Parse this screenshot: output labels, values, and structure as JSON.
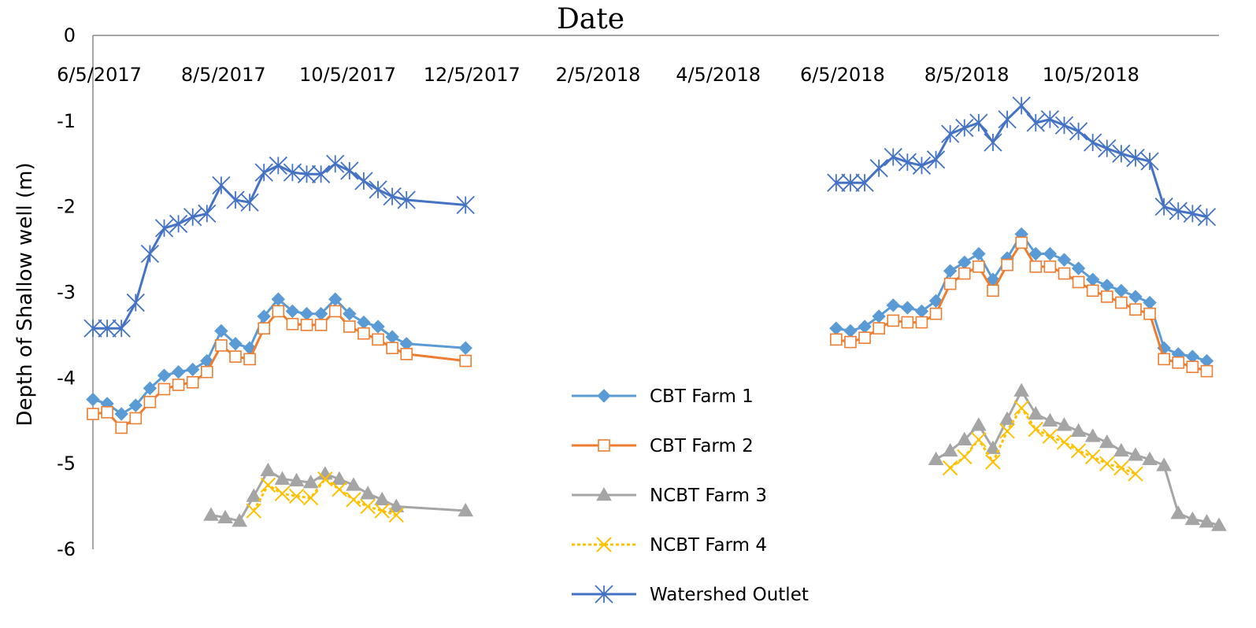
{
  "chart_data": {
    "type": "line",
    "title": "Date",
    "ylabel": "Depth of Shallow well (m)",
    "ylim": [
      -6,
      0
    ],
    "yticks": [
      0,
      -1,
      -2,
      -3,
      -4,
      -5,
      -6
    ],
    "y_tick_labels": [
      "0",
      "-1",
      "-2",
      "-3",
      "-4",
      "-5",
      "-6"
    ],
    "x_axis": {
      "position": "top"
    },
    "x_tick_labels": [
      "6/5/2017",
      "8/5/2017",
      "10/5/2017",
      "12/5/2017",
      "2/5/2018",
      "4/5/2018",
      "6/5/2018",
      "8/5/2018",
      "10/5/2018"
    ],
    "xticks": [
      "2017-06-05",
      "2017-08-05",
      "2017-10-05",
      "2017-12-05",
      "2018-02-05",
      "2018-04-05",
      "2018-06-05",
      "2018-08-05",
      "2018-10-05"
    ],
    "xlim": [
      "2017-06-05",
      "2018-12-10"
    ],
    "legend": {
      "placement": "bottom-center"
    },
    "series": [
      {
        "name": "CBT Farm 1",
        "color": "#5B9BD5",
        "marker": "diamond",
        "segments": [
          [
            [
              "2017-06-05",
              -4.25
            ],
            [
              "2017-06-12",
              -4.3
            ],
            [
              "2017-06-19",
              -4.42
            ],
            [
              "2017-06-26",
              -4.32
            ],
            [
              "2017-07-03",
              -4.12
            ],
            [
              "2017-07-10",
              -3.97
            ],
            [
              "2017-07-17",
              -3.93
            ],
            [
              "2017-07-24",
              -3.9
            ],
            [
              "2017-07-31",
              -3.8
            ],
            [
              "2017-08-07",
              -3.45
            ],
            [
              "2017-08-14",
              -3.6
            ],
            [
              "2017-08-21",
              -3.65
            ],
            [
              "2017-08-28",
              -3.28
            ],
            [
              "2017-09-04",
              -3.08
            ],
            [
              "2017-09-11",
              -3.22
            ],
            [
              "2017-09-18",
              -3.25
            ],
            [
              "2017-09-25",
              -3.25
            ],
            [
              "2017-10-02",
              -3.08
            ],
            [
              "2017-10-09",
              -3.25
            ],
            [
              "2017-10-16",
              -3.35
            ],
            [
              "2017-10-23",
              -3.4
            ],
            [
              "2017-10-30",
              -3.52
            ],
            [
              "2017-11-06",
              -3.6
            ],
            [
              "2017-12-05",
              -3.65
            ]
          ],
          [
            [
              "2018-06-05",
              -3.42
            ],
            [
              "2018-06-12",
              -3.45
            ],
            [
              "2018-06-19",
              -3.4
            ],
            [
              "2018-06-26",
              -3.28
            ],
            [
              "2018-07-03",
              -3.15
            ],
            [
              "2018-07-10",
              -3.18
            ],
            [
              "2018-07-17",
              -3.22
            ],
            [
              "2018-07-24",
              -3.1
            ],
            [
              "2018-07-31",
              -2.75
            ],
            [
              "2018-08-07",
              -2.65
            ],
            [
              "2018-08-14",
              -2.55
            ],
            [
              "2018-08-21",
              -2.85
            ],
            [
              "2018-08-28",
              -2.6
            ],
            [
              "2018-09-04",
              -2.32
            ],
            [
              "2018-09-11",
              -2.55
            ],
            [
              "2018-09-18",
              -2.55
            ],
            [
              "2018-09-25",
              -2.62
            ],
            [
              "2018-10-02",
              -2.72
            ],
            [
              "2018-10-09",
              -2.85
            ],
            [
              "2018-10-16",
              -2.92
            ],
            [
              "2018-10-23",
              -2.98
            ],
            [
              "2018-10-30",
              -3.05
            ],
            [
              "2018-11-06",
              -3.12
            ],
            [
              "2018-11-13",
              -3.65
            ],
            [
              "2018-11-20",
              -3.72
            ],
            [
              "2018-11-27",
              -3.75
            ],
            [
              "2018-12-04",
              -3.8
            ]
          ]
        ]
      },
      {
        "name": "CBT Farm 2",
        "color": "#ED7D31",
        "marker": "square",
        "segments": [
          [
            [
              "2017-06-05",
              -4.42
            ],
            [
              "2017-06-12",
              -4.4
            ],
            [
              "2017-06-19",
              -4.58
            ],
            [
              "2017-06-26",
              -4.47
            ],
            [
              "2017-07-03",
              -4.28
            ],
            [
              "2017-07-10",
              -4.13
            ],
            [
              "2017-07-17",
              -4.08
            ],
            [
              "2017-07-24",
              -4.05
            ],
            [
              "2017-07-31",
              -3.93
            ],
            [
              "2017-08-07",
              -3.62
            ],
            [
              "2017-08-14",
              -3.75
            ],
            [
              "2017-08-21",
              -3.78
            ],
            [
              "2017-08-28",
              -3.42
            ],
            [
              "2017-09-04",
              -3.22
            ],
            [
              "2017-09-11",
              -3.37
            ],
            [
              "2017-09-18",
              -3.38
            ],
            [
              "2017-09-25",
              -3.38
            ],
            [
              "2017-10-02",
              -3.22
            ],
            [
              "2017-10-09",
              -3.4
            ],
            [
              "2017-10-16",
              -3.48
            ],
            [
              "2017-10-23",
              -3.55
            ],
            [
              "2017-10-30",
              -3.65
            ],
            [
              "2017-11-06",
              -3.72
            ],
            [
              "2017-12-05",
              -3.8
            ]
          ],
          [
            [
              "2018-06-05",
              -3.55
            ],
            [
              "2018-06-12",
              -3.58
            ],
            [
              "2018-06-19",
              -3.53
            ],
            [
              "2018-06-26",
              -3.42
            ],
            [
              "2018-07-03",
              -3.33
            ],
            [
              "2018-07-10",
              -3.35
            ],
            [
              "2018-07-17",
              -3.35
            ],
            [
              "2018-07-24",
              -3.25
            ],
            [
              "2018-07-31",
              -2.9
            ],
            [
              "2018-08-07",
              -2.78
            ],
            [
              "2018-08-14",
              -2.7
            ],
            [
              "2018-08-21",
              -2.98
            ],
            [
              "2018-08-28",
              -2.68
            ],
            [
              "2018-09-04",
              -2.42
            ],
            [
              "2018-09-11",
              -2.7
            ],
            [
              "2018-09-18",
              -2.7
            ],
            [
              "2018-09-25",
              -2.78
            ],
            [
              "2018-10-02",
              -2.88
            ],
            [
              "2018-10-09",
              -2.98
            ],
            [
              "2018-10-16",
              -3.05
            ],
            [
              "2018-10-23",
              -3.12
            ],
            [
              "2018-10-30",
              -3.2
            ],
            [
              "2018-11-06",
              -3.25
            ],
            [
              "2018-11-13",
              -3.78
            ],
            [
              "2018-11-20",
              -3.82
            ],
            [
              "2018-11-27",
              -3.87
            ],
            [
              "2018-12-04",
              -3.92
            ]
          ]
        ]
      },
      {
        "name": "NCBT Farm 3",
        "color": "#A5A5A5",
        "marker": "triangle",
        "segments": [
          [
            [
              "2017-08-02",
              -5.6
            ],
            [
              "2017-08-09",
              -5.63
            ],
            [
              "2017-08-16",
              -5.67
            ],
            [
              "2017-08-23",
              -5.38
            ],
            [
              "2017-08-30",
              -5.08
            ],
            [
              "2017-09-06",
              -5.18
            ],
            [
              "2017-09-13",
              -5.2
            ],
            [
              "2017-09-20",
              -5.22
            ],
            [
              "2017-09-27",
              -5.12
            ],
            [
              "2017-10-04",
              -5.18
            ],
            [
              "2017-10-11",
              -5.25
            ],
            [
              "2017-10-18",
              -5.35
            ],
            [
              "2017-10-25",
              -5.42
            ],
            [
              "2017-11-01",
              -5.5
            ],
            [
              "2017-12-05",
              -5.55
            ]
          ],
          [
            [
              "2018-07-24",
              -4.95
            ],
            [
              "2018-07-31",
              -4.85
            ],
            [
              "2018-08-07",
              -4.72
            ],
            [
              "2018-08-14",
              -4.55
            ],
            [
              "2018-08-21",
              -4.82
            ],
            [
              "2018-08-28",
              -4.48
            ],
            [
              "2018-09-04",
              -4.15
            ],
            [
              "2018-09-11",
              -4.42
            ],
            [
              "2018-09-18",
              -4.5
            ],
            [
              "2018-09-25",
              -4.55
            ],
            [
              "2018-10-02",
              -4.62
            ],
            [
              "2018-10-09",
              -4.68
            ],
            [
              "2018-10-16",
              -4.75
            ],
            [
              "2018-10-23",
              -4.85
            ],
            [
              "2018-10-30",
              -4.9
            ],
            [
              "2018-11-06",
              -4.95
            ],
            [
              "2018-11-13",
              -5.02
            ],
            [
              "2018-11-20",
              -5.58
            ],
            [
              "2018-11-27",
              -5.65
            ],
            [
              "2018-12-04",
              -5.68
            ],
            [
              "2018-12-10",
              -5.72
            ]
          ]
        ]
      },
      {
        "name": "NCBT Farm 4",
        "color": "#FFC000",
        "marker": "x",
        "segments": [
          [
            [
              "2017-08-23",
              -5.55
            ],
            [
              "2017-08-30",
              -5.25
            ],
            [
              "2017-09-06",
              -5.35
            ],
            [
              "2017-09-13",
              -5.38
            ],
            [
              "2017-09-20",
              -5.4
            ],
            [
              "2017-09-27",
              -5.18
            ],
            [
              "2017-10-04",
              -5.3
            ],
            [
              "2017-10-11",
              -5.42
            ],
            [
              "2017-10-18",
              -5.5
            ],
            [
              "2017-10-25",
              -5.55
            ],
            [
              "2017-11-01",
              -5.6
            ]
          ],
          [
            [
              "2018-07-31",
              -5.05
            ],
            [
              "2018-08-07",
              -4.92
            ],
            [
              "2018-08-14",
              -4.72
            ],
            [
              "2018-08-21",
              -4.98
            ],
            [
              "2018-08-28",
              -4.62
            ],
            [
              "2018-09-04",
              -4.35
            ],
            [
              "2018-09-11",
              -4.6
            ],
            [
              "2018-09-18",
              -4.68
            ],
            [
              "2018-09-25",
              -4.75
            ],
            [
              "2018-10-02",
              -4.85
            ],
            [
              "2018-10-09",
              -4.92
            ],
            [
              "2018-10-16",
              -5.0
            ],
            [
              "2018-10-23",
              -5.05
            ],
            [
              "2018-10-30",
              -5.12
            ]
          ]
        ]
      },
      {
        "name": "Watershed Outlet",
        "color": "#4472C4",
        "marker": "star",
        "segments": [
          [
            [
              "2017-06-05",
              -3.42
            ],
            [
              "2017-06-12",
              -3.42
            ],
            [
              "2017-06-19",
              -3.42
            ],
            [
              "2017-06-26",
              -3.12
            ],
            [
              "2017-07-03",
              -2.55
            ],
            [
              "2017-07-10",
              -2.25
            ],
            [
              "2017-07-17",
              -2.2
            ],
            [
              "2017-07-24",
              -2.12
            ],
            [
              "2017-07-31",
              -2.08
            ],
            [
              "2017-08-07",
              -1.75
            ],
            [
              "2017-08-14",
              -1.92
            ],
            [
              "2017-08-21",
              -1.95
            ],
            [
              "2017-08-28",
              -1.6
            ],
            [
              "2017-09-04",
              -1.52
            ],
            [
              "2017-09-11",
              -1.6
            ],
            [
              "2017-09-18",
              -1.62
            ],
            [
              "2017-09-25",
              -1.62
            ],
            [
              "2017-10-02",
              -1.5
            ],
            [
              "2017-10-09",
              -1.58
            ],
            [
              "2017-10-16",
              -1.7
            ],
            [
              "2017-10-23",
              -1.8
            ],
            [
              "2017-10-30",
              -1.88
            ],
            [
              "2017-11-06",
              -1.92
            ],
            [
              "2017-12-05",
              -1.98
            ]
          ],
          [
            [
              "2018-06-05",
              -1.72
            ],
            [
              "2018-06-12",
              -1.72
            ],
            [
              "2018-06-19",
              -1.72
            ],
            [
              "2018-06-26",
              -1.55
            ],
            [
              "2018-07-03",
              -1.42
            ],
            [
              "2018-07-10",
              -1.48
            ],
            [
              "2018-07-17",
              -1.52
            ],
            [
              "2018-07-24",
              -1.45
            ],
            [
              "2018-07-31",
              -1.15
            ],
            [
              "2018-08-07",
              -1.08
            ],
            [
              "2018-08-14",
              -1.02
            ],
            [
              "2018-08-21",
              -1.25
            ],
            [
              "2018-08-28",
              -0.98
            ],
            [
              "2018-09-04",
              -0.82
            ],
            [
              "2018-09-11",
              -1.02
            ],
            [
              "2018-09-18",
              -0.98
            ],
            [
              "2018-09-25",
              -1.05
            ],
            [
              "2018-10-02",
              -1.12
            ],
            [
              "2018-10-09",
              -1.25
            ],
            [
              "2018-10-16",
              -1.32
            ],
            [
              "2018-10-23",
              -1.38
            ],
            [
              "2018-10-30",
              -1.43
            ],
            [
              "2018-11-06",
              -1.47
            ],
            [
              "2018-11-13",
              -2.0
            ],
            [
              "2018-11-20",
              -2.05
            ],
            [
              "2018-11-27",
              -2.08
            ],
            [
              "2018-12-04",
              -2.12
            ]
          ]
        ]
      }
    ]
  }
}
